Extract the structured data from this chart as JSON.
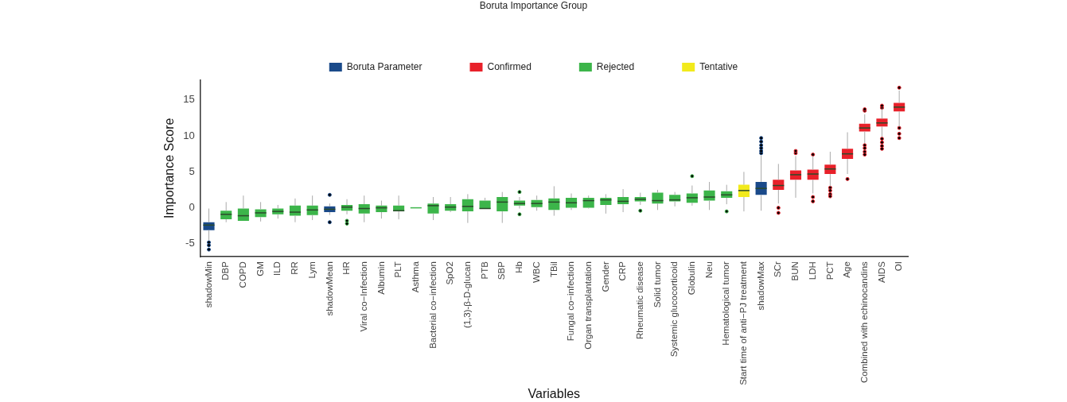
{
  "chart_data": {
    "type": "box",
    "xlabel": "Variables",
    "ylabel": "Importance Score",
    "legend_title": "Boruta Importance Group",
    "legend": "top",
    "grid": false,
    "categories": [
      "shadowMin",
      "DBP",
      "COPD",
      "GM",
      "ILD",
      "RR",
      "Lym",
      "shadowMean",
      "HR",
      "Viral co−Infection",
      "Albumin",
      "PLT",
      "Asthma",
      "Bacterial co−infection",
      "SpO2",
      "(1,3)-β-D-glucan",
      "PTB",
      "SBP",
      "Hb",
      "WBC",
      "TBil",
      "Fungal co−infection",
      "Organ transplantation",
      "Gender",
      "CRP",
      "Rheumatic disease",
      "Solid tumor",
      "Systemic glucocorticoid",
      "Globulin",
      "Neu",
      "Hematological tumor",
      "Start time of anti−PJ treatment",
      "shadowMax",
      "SCr",
      "BUN",
      "LDH",
      "PCT",
      "Age",
      "Combined with echinocandins",
      "AIDS",
      "OI"
    ],
    "ylim": [
      -6.8,
      17.8
    ],
    "yticks": [
      -5,
      0,
      5,
      10,
      15
    ],
    "series": [
      {
        "name": "Boruta Parameter",
        "color": "#1a4a8a",
        "boxes": [
          {
            "low": -4.5,
            "q1": -3.1,
            "median": -2.4,
            "q3": -2.0,
            "high": -0.1,
            "outliers": [
              -4.8,
              -5.2,
              -5.8
            ]
          },
          null,
          null,
          null,
          null,
          null,
          null,
          {
            "low": -1.0,
            "q1": -0.6,
            "median": -0.2,
            "q3": 0.2,
            "high": 0.6,
            "outliers": [
              1.8,
              -2.0
            ]
          },
          null,
          null,
          null,
          null,
          null,
          null,
          null,
          null,
          null,
          null,
          null,
          null,
          null,
          null,
          null,
          null,
          null,
          null,
          null,
          null,
          null,
          null,
          null,
          null,
          {
            "low": -0.4,
            "q1": 1.8,
            "median": 2.7,
            "q3": 3.6,
            "high": 7.3,
            "outliers": [
              7.6,
              7.9,
              8.3,
              8.7,
              9.2,
              9.7
            ]
          },
          null,
          null,
          null,
          null,
          null,
          null,
          null,
          null
        ]
      },
      {
        "name": "Confirmed",
        "color": "#e8212a",
        "boxes": [
          null,
          null,
          null,
          null,
          null,
          null,
          null,
          null,
          null,
          null,
          null,
          null,
          null,
          null,
          null,
          null,
          null,
          null,
          null,
          null,
          null,
          null,
          null,
          null,
          null,
          null,
          null,
          null,
          null,
          null,
          null,
          null,
          null,
          {
            "low": 0.6,
            "q1": 2.5,
            "median": 3.1,
            "q3": 3.9,
            "high": 6.1,
            "outliers": [
              0.0,
              -0.7
            ]
          },
          {
            "low": 1.4,
            "q1": 3.9,
            "median": 4.6,
            "q3": 5.2,
            "high": 7.2,
            "outliers": [
              7.6,
              7.9
            ]
          },
          {
            "low": 2.0,
            "q1": 3.9,
            "median": 4.7,
            "q3": 5.3,
            "high": 7.2,
            "outliers": [
              7.4,
              1.5,
              0.9
            ]
          },
          {
            "low": 3.0,
            "q1": 4.7,
            "median": 5.4,
            "q3": 6.0,
            "high": 7.8,
            "outliers": [
              2.8,
              2.4,
              1.9,
              1.6
            ]
          },
          {
            "low": 4.7,
            "q1": 6.8,
            "median": 7.5,
            "q3": 8.2,
            "high": 10.5,
            "outliers": [
              4.0
            ]
          },
          {
            "low": 9.0,
            "q1": 10.6,
            "median": 11.1,
            "q3": 11.7,
            "high": 13.0,
            "outliers": [
              13.5,
              13.7,
              8.7,
              8.3,
              7.8,
              7.4
            ]
          },
          {
            "low": 9.9,
            "q1": 11.3,
            "median": 11.8,
            "q3": 12.4,
            "high": 13.8,
            "outliers": [
              13.9,
              14.2,
              9.6,
              9.1,
              8.6,
              8.2
            ]
          },
          {
            "low": 11.3,
            "q1": 13.4,
            "median": 14.0,
            "q3": 14.6,
            "high": 16.3,
            "outliers": [
              16.7,
              11.1,
              10.3,
              9.7
            ]
          }
        ]
      },
      {
        "name": "Rejected",
        "color": "#3cb54a",
        "boxes": [
          null,
          {
            "low": -2.0,
            "q1": -1.6,
            "median": -0.9,
            "q3": -0.4,
            "high": 0.8
          },
          {
            "low": -1.8,
            "q1": -1.8,
            "median": -1.1,
            "q3": -0.1,
            "high": 1.7
          },
          {
            "low": -1.9,
            "q1": -1.3,
            "median": -0.7,
            "q3": -0.2,
            "high": 0.8
          },
          {
            "low": -1.5,
            "q1": -0.9,
            "median": -0.5,
            "q3": -0.1,
            "high": 0.4
          },
          {
            "low": -2.0,
            "q1": -1.1,
            "median": -0.6,
            "q3": 0.3,
            "high": 1.3
          },
          {
            "low": -1.7,
            "q1": -1.0,
            "median": -0.3,
            "q3": 0.3,
            "high": 1.7
          },
          null,
          {
            "low": -0.9,
            "q1": -0.4,
            "median": 0.1,
            "q3": 0.4,
            "high": 1.2,
            "outliers": [
              -1.8,
              -2.2
            ]
          },
          {
            "low": -2.0,
            "q1": -0.8,
            "median": -0.1,
            "q3": 0.5,
            "high": 1.7
          },
          {
            "low": -1.5,
            "q1": -0.6,
            "median": 0.0,
            "q3": 0.3,
            "high": 1.0
          },
          {
            "low": -1.6,
            "q1": -0.5,
            "median": -0.4,
            "q3": 0.3,
            "high": 1.7
          },
          {
            "low": 0,
            "q1": 0,
            "median": 0,
            "q3": 0,
            "high": 0
          },
          {
            "low": -1.7,
            "q1": -0.8,
            "median": 0.3,
            "q3": 0.6,
            "high": 1.5
          },
          {
            "low": -0.6,
            "q1": -0.4,
            "median": 0.1,
            "q3": 0.5,
            "high": 1.5
          },
          {
            "low": -2.1,
            "q1": -0.5,
            "median": 0.2,
            "q3": 1.2,
            "high": 1.9
          },
          {
            "low": -0.1,
            "q1": -0.1,
            "median": -0.1,
            "q3": 1.0,
            "high": 1.4
          },
          {
            "low": -2.1,
            "q1": -0.5,
            "median": 0.8,
            "q3": 1.5,
            "high": 2.2
          },
          {
            "low": -0.1,
            "q1": 0.3,
            "median": 0.6,
            "q3": 1.0,
            "high": 1.5,
            "outliers": [
              2.2,
              -0.9
            ]
          },
          {
            "low": -0.4,
            "q1": 0.1,
            "median": 0.6,
            "q3": 1.1,
            "high": 1.7
          },
          {
            "low": -1.1,
            "q1": -0.3,
            "median": 0.8,
            "q3": 1.3,
            "high": 3.0
          },
          {
            "low": -0.3,
            "q1": 0.0,
            "median": 0.7,
            "q3": 1.4,
            "high": 2.0
          },
          {
            "low": -0.1,
            "q1": 0.0,
            "median": 1.0,
            "q3": 1.4,
            "high": 1.7
          },
          {
            "low": -0.8,
            "q1": 0.4,
            "median": 1.1,
            "q3": 1.4,
            "high": 1.9
          },
          {
            "low": -0.6,
            "q1": 0.5,
            "median": 0.9,
            "q3": 1.5,
            "high": 2.6
          },
          {
            "low": 0.4,
            "q1": 0.9,
            "median": 1.2,
            "q3": 1.5,
            "high": 2.1,
            "outliers": [
              -0.4
            ]
          },
          {
            "low": -0.3,
            "q1": 0.6,
            "median": 1.0,
            "q3": 2.1,
            "high": 2.5
          },
          {
            "low": 0.2,
            "q1": 0.9,
            "median": 1.1,
            "q3": 1.8,
            "high": 2.2
          },
          {
            "low": 0.3,
            "q1": 0.7,
            "median": 1.4,
            "q3": 2.0,
            "high": 3.1,
            "outliers": [
              4.4
            ]
          },
          {
            "low": -0.3,
            "q1": 1.0,
            "median": 1.5,
            "q3": 2.4,
            "high": 3.6
          },
          {
            "low": 0.5,
            "q1": 1.4,
            "median": 1.8,
            "q3": 2.3,
            "high": 3.2,
            "outliers": [
              -0.5
            ]
          },
          null,
          null,
          null,
          null,
          null,
          null,
          null,
          null,
          null,
          null
        ]
      },
      {
        "name": "Tentative",
        "color": "#f2ea1c",
        "boxes": [
          null,
          null,
          null,
          null,
          null,
          null,
          null,
          null,
          null,
          null,
          null,
          null,
          null,
          null,
          null,
          null,
          null,
          null,
          null,
          null,
          null,
          null,
          null,
          null,
          null,
          null,
          null,
          null,
          null,
          null,
          null,
          {
            "low": -0.5,
            "q1": 1.5,
            "median": 2.4,
            "q3": 3.2,
            "high": 5.0
          },
          null,
          null,
          null,
          null,
          null,
          null,
          null,
          null,
          null
        ]
      }
    ]
  }
}
